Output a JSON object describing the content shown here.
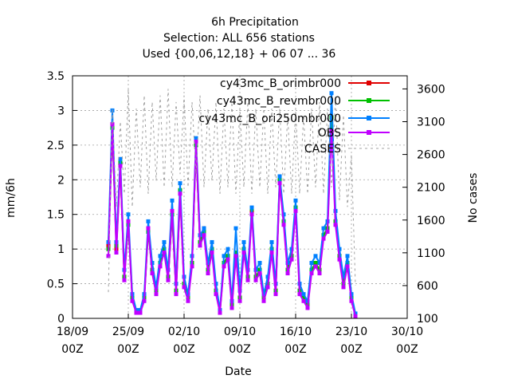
{
  "chart_data": {
    "type": "line",
    "title_lines": [
      "6h Precipitation",
      "Selection: ALL    656 stations",
      "Used {00,06,12,18} + 06 07 ... 36"
    ],
    "xlabel": "Date",
    "ylabel": "mm/6h",
    "y2label": "No cases",
    "x_ticks": [
      {
        "day": 0,
        "line1": "18/09",
        "line2": "00Z"
      },
      {
        "day": 7,
        "line1": "25/09",
        "line2": "00Z"
      },
      {
        "day": 14,
        "line1": "02/10",
        "line2": "00Z"
      },
      {
        "day": 21,
        "line1": "09/10",
        "line2": "00Z"
      },
      {
        "day": 28,
        "line1": "16/10",
        "line2": "00Z"
      },
      {
        "day": 35,
        "line1": "23/10",
        "line2": "00Z"
      },
      {
        "day": 42,
        "line1": "30/10",
        "line2": "00Z"
      }
    ],
    "xlim": [
      0,
      42
    ],
    "ylim": [
      0,
      3.5
    ],
    "y_ticks": [
      "0",
      "0.5",
      "1",
      "1.5",
      "2",
      "2.5",
      "3",
      "3.5"
    ],
    "y2lim": [
      100,
      3800
    ],
    "y2_ticks": [
      "100",
      "600",
      "1100",
      "1600",
      "2100",
      "2600",
      "3100",
      "3600"
    ],
    "grid": true,
    "legend_position": "top-right",
    "series": [
      {
        "name": "cy43mc_B_orimbr000",
        "color": "#e00000",
        "axis": "y1",
        "x": [
          4.5,
          5.0,
          5.5,
          6.0,
          6.5,
          7.0,
          7.5,
          8.0,
          8.5,
          9.0,
          9.5,
          10.0,
          10.5,
          11.0,
          11.5,
          12.0,
          12.5,
          13.0,
          13.5,
          14.0,
          14.5,
          15.0,
          15.5,
          16.0,
          16.5,
          17.0,
          17.5,
          18.0,
          18.5,
          19.0,
          19.5,
          20.0,
          20.5,
          21.0,
          21.5,
          22.0,
          22.5,
          23.0,
          23.5,
          24.0,
          24.5,
          25.0,
          25.5,
          26.0,
          26.5,
          27.0,
          27.5,
          28.0,
          28.5,
          29.0,
          29.5,
          30.0,
          30.5,
          31.0,
          31.5,
          32.0,
          32.5,
          33.0,
          33.5,
          34.0,
          34.5,
          35.0,
          35.5
        ],
        "y": [
          1.05,
          2.8,
          1.0,
          2.2,
          0.6,
          1.4,
          0.3,
          0.1,
          0.1,
          0.3,
          1.3,
          0.7,
          0.4,
          0.8,
          1.0,
          0.6,
          1.5,
          0.4,
          1.8,
          0.5,
          0.3,
          0.8,
          2.5,
          1.1,
          1.3,
          0.7,
          1.0,
          0.4,
          0.1,
          0.8,
          0.9,
          0.2,
          0.9,
          0.3,
          1.0,
          0.6,
          1.55,
          0.6,
          0.7,
          0.3,
          0.5,
          1.0,
          0.4,
          2.0,
          1.4,
          0.7,
          0.9,
          1.6,
          0.4,
          0.3,
          0.2,
          0.7,
          0.8,
          0.7,
          1.2,
          1.3,
          2.9,
          1.4,
          0.9,
          0.5,
          0.8,
          0.3,
          0.05
        ]
      },
      {
        "name": "cy43mc_B_revmbr000",
        "color": "#00c000",
        "axis": "y1",
        "x": [
          4.5,
          5.0,
          5.5,
          6.0,
          6.5,
          7.0,
          7.5,
          8.0,
          8.5,
          9.0,
          9.5,
          10.0,
          10.5,
          11.0,
          11.5,
          12.0,
          12.5,
          13.0,
          13.5,
          14.0,
          14.5,
          15.0,
          15.5,
          16.0,
          16.5,
          17.0,
          17.5,
          18.0,
          18.5,
          19.0,
          19.5,
          20.0,
          20.5,
          21.0,
          21.5,
          22.0,
          22.5,
          23.0,
          23.5,
          24.0,
          24.5,
          25.0,
          25.5,
          26.0,
          26.5,
          27.0,
          27.5,
          28.0,
          28.5,
          29.0,
          29.5,
          30.0,
          30.5,
          31.0,
          31.5,
          32.0,
          32.5,
          33.0,
          33.5,
          34.0,
          34.5,
          35.0,
          35.5
        ],
        "y": [
          1.0,
          2.75,
          1.05,
          2.25,
          0.6,
          1.35,
          0.3,
          0.1,
          0.1,
          0.3,
          1.25,
          0.7,
          0.4,
          0.8,
          1.0,
          0.6,
          1.5,
          0.4,
          1.85,
          0.5,
          0.3,
          0.8,
          2.5,
          1.1,
          1.25,
          0.7,
          1.0,
          0.4,
          0.1,
          0.8,
          0.9,
          0.2,
          0.95,
          0.3,
          1.0,
          0.6,
          1.58,
          0.6,
          0.7,
          0.3,
          0.5,
          1.0,
          0.4,
          2.0,
          1.4,
          0.7,
          0.9,
          1.6,
          0.4,
          0.3,
          0.2,
          0.7,
          0.8,
          0.7,
          1.2,
          1.3,
          2.9,
          1.4,
          0.9,
          0.5,
          0.8,
          0.3,
          0.05
        ]
      },
      {
        "name": "cy43mc_B_ori250mbr000",
        "color": "#0080ff",
        "axis": "y1",
        "x": [
          4.5,
          5.0,
          5.5,
          6.0,
          6.5,
          7.0,
          7.5,
          8.0,
          8.5,
          9.0,
          9.5,
          10.0,
          10.5,
          11.0,
          11.5,
          12.0,
          12.5,
          13.0,
          13.5,
          14.0,
          14.5,
          15.0,
          15.5,
          16.0,
          16.5,
          17.0,
          17.5,
          18.0,
          18.5,
          19.0,
          19.5,
          20.0,
          20.5,
          21.0,
          21.5,
          22.0,
          22.5,
          23.0,
          23.5,
          24.0,
          24.5,
          25.0,
          25.5,
          26.0,
          26.5,
          27.0,
          27.5,
          28.0,
          28.5,
          29.0,
          29.5,
          30.0,
          30.5,
          31.0,
          31.5,
          32.0,
          32.5,
          33.0,
          33.5,
          34.0,
          34.5,
          35.0,
          35.5
        ],
        "y": [
          1.1,
          3.0,
          1.1,
          2.3,
          0.7,
          1.5,
          0.35,
          0.12,
          0.12,
          0.35,
          1.4,
          0.8,
          0.45,
          0.9,
          1.1,
          0.7,
          1.7,
          0.5,
          1.95,
          0.6,
          0.35,
          0.9,
          2.6,
          1.2,
          1.3,
          0.8,
          1.1,
          0.5,
          0.12,
          0.9,
          1.0,
          0.25,
          1.3,
          0.4,
          1.1,
          0.7,
          1.6,
          0.7,
          0.8,
          0.35,
          0.6,
          1.1,
          0.5,
          2.05,
          1.5,
          0.8,
          1.0,
          1.7,
          0.5,
          0.35,
          0.25,
          0.8,
          0.9,
          0.8,
          1.3,
          1.4,
          3.25,
          1.55,
          1.0,
          0.6,
          0.9,
          0.35,
          0.07
        ]
      },
      {
        "name": "OBS",
        "color": "#c000ff",
        "axis": "y1",
        "x": [
          4.5,
          5.0,
          5.5,
          6.0,
          6.5,
          7.0,
          7.5,
          8.0,
          8.5,
          9.0,
          9.5,
          10.0,
          10.5,
          11.0,
          11.5,
          12.0,
          12.5,
          13.0,
          13.5,
          14.0,
          14.5,
          15.0,
          15.5,
          16.0,
          16.5,
          17.0,
          17.5,
          18.0,
          18.5,
          19.0,
          19.5,
          20.0,
          20.5,
          21.0,
          21.5,
          22.0,
          22.5,
          23.0,
          23.5,
          24.0,
          24.5,
          25.0,
          25.5,
          26.0,
          26.5,
          27.0,
          27.5,
          28.0,
          28.5,
          29.0,
          29.5,
          30.0,
          30.5,
          31.0,
          31.5,
          32.0,
          32.5,
          33.0,
          33.5,
          34.0,
          34.5,
          35.0,
          35.5
        ],
        "y": [
          0.9,
          2.8,
          0.95,
          2.2,
          0.55,
          1.4,
          0.25,
          0.08,
          0.08,
          0.25,
          1.3,
          0.65,
          0.35,
          0.75,
          0.95,
          0.55,
          1.55,
          0.35,
          1.8,
          0.45,
          0.25,
          0.75,
          2.55,
          1.05,
          1.2,
          0.65,
          0.95,
          0.35,
          0.08,
          0.75,
          0.85,
          0.15,
          0.9,
          0.25,
          0.95,
          0.55,
          1.5,
          0.55,
          0.65,
          0.25,
          0.45,
          0.95,
          0.35,
          1.95,
          1.35,
          0.65,
          0.85,
          1.55,
          0.35,
          0.25,
          0.15,
          0.65,
          0.75,
          0.65,
          1.15,
          1.25,
          2.7,
          1.35,
          0.85,
          0.45,
          0.75,
          0.25,
          0.03
        ]
      },
      {
        "name": "CASES",
        "color": "#a0a0a0",
        "axis": "y2",
        "x": [
          4.5,
          5.0,
          5.5,
          6.0,
          6.5,
          7.0,
          7.5,
          8.0,
          8.5,
          9.0,
          9.5,
          10.0,
          10.5,
          11.0,
          11.5,
          12.0,
          12.5,
          13.0,
          13.5,
          14.0,
          14.5,
          15.0,
          15.5,
          16.0,
          16.5,
          17.0,
          17.5,
          18.0,
          18.5,
          19.0,
          19.5,
          20.0,
          20.5,
          21.0,
          21.5,
          22.0,
          22.5,
          23.0,
          23.5,
          24.0,
          24.5,
          25.0,
          25.5,
          26.0,
          26.5,
          27.0,
          27.5,
          28.0,
          28.5,
          29.0,
          29.5,
          30.0,
          30.5,
          31.0,
          31.5,
          32.0,
          32.5,
          33.0,
          33.5,
          34.0,
          34.5,
          35.0,
          35.5
        ],
        "y": [
          500,
          3300,
          1800,
          3100,
          2000,
          3600,
          1800,
          3300,
          2100,
          3500,
          2000,
          3400,
          2200,
          3500,
          2100,
          3600,
          2100,
          3400,
          2300,
          3500,
          2100,
          3400,
          2300,
          3500,
          2100,
          3300,
          2200,
          3400,
          2000,
          3300,
          2100,
          3400,
          2000,
          3300,
          2100,
          3400,
          2000,
          3300,
          2100,
          3300,
          2000,
          3300,
          2100,
          3300,
          2000,
          3200,
          2000,
          3300,
          2000,
          3200,
          2000,
          3300,
          2100,
          3400,
          2000,
          3300,
          2100,
          3500,
          1900,
          3200,
          1800,
          2600,
          600
        ]
      }
    ]
  }
}
